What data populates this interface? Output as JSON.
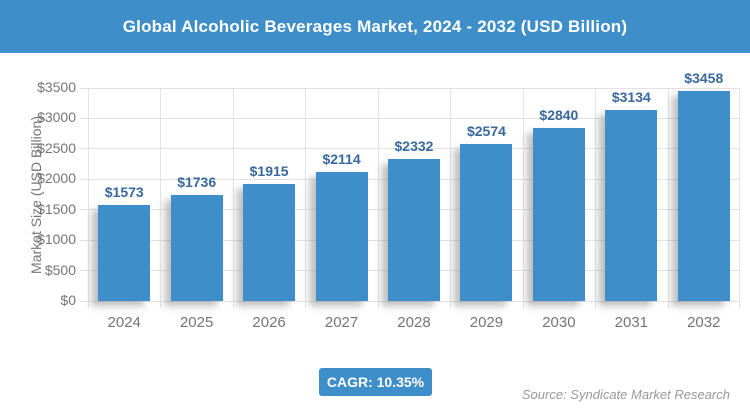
{
  "header": {
    "title": "Global Alcoholic Beverages Market, 2024 - 2032 (USD Billion)"
  },
  "footer": {
    "cagr_label": "CAGR: 10.35%",
    "source": "Source: Syndicate Market Research"
  },
  "colors": {
    "accent": "#3E8EC9",
    "bar": "#3E8EC9",
    "value-label": "#39689D",
    "axis-text": "#757575",
    "grid": "#E2E2E2",
    "source": "#999999"
  },
  "chart_data": {
    "type": "bar",
    "title": "Global Alcoholic Beverages Market, 2024 - 2032 (USD Billion)",
    "categories": [
      "2024",
      "2025",
      "2026",
      "2027",
      "2028",
      "2029",
      "2030",
      "2031",
      "2032"
    ],
    "values": [
      1573,
      1736,
      1915,
      2114,
      2332,
      2574,
      2840,
      3134,
      3458
    ],
    "value_labels": [
      "$1573",
      "$1736",
      "$1915",
      "$2114",
      "$2332",
      "$2574",
      "$2840",
      "$3134",
      "$3458"
    ],
    "xlabel": "",
    "ylabel": "Market Size (USD Billion)",
    "y_ticks": [
      "$0",
      "$500",
      "$1000",
      "$1500",
      "$2000",
      "$2500",
      "$3000",
      "$3500"
    ],
    "ylim": [
      0,
      3500
    ],
    "grid": true,
    "legend": false,
    "cagr": "10.35%"
  }
}
